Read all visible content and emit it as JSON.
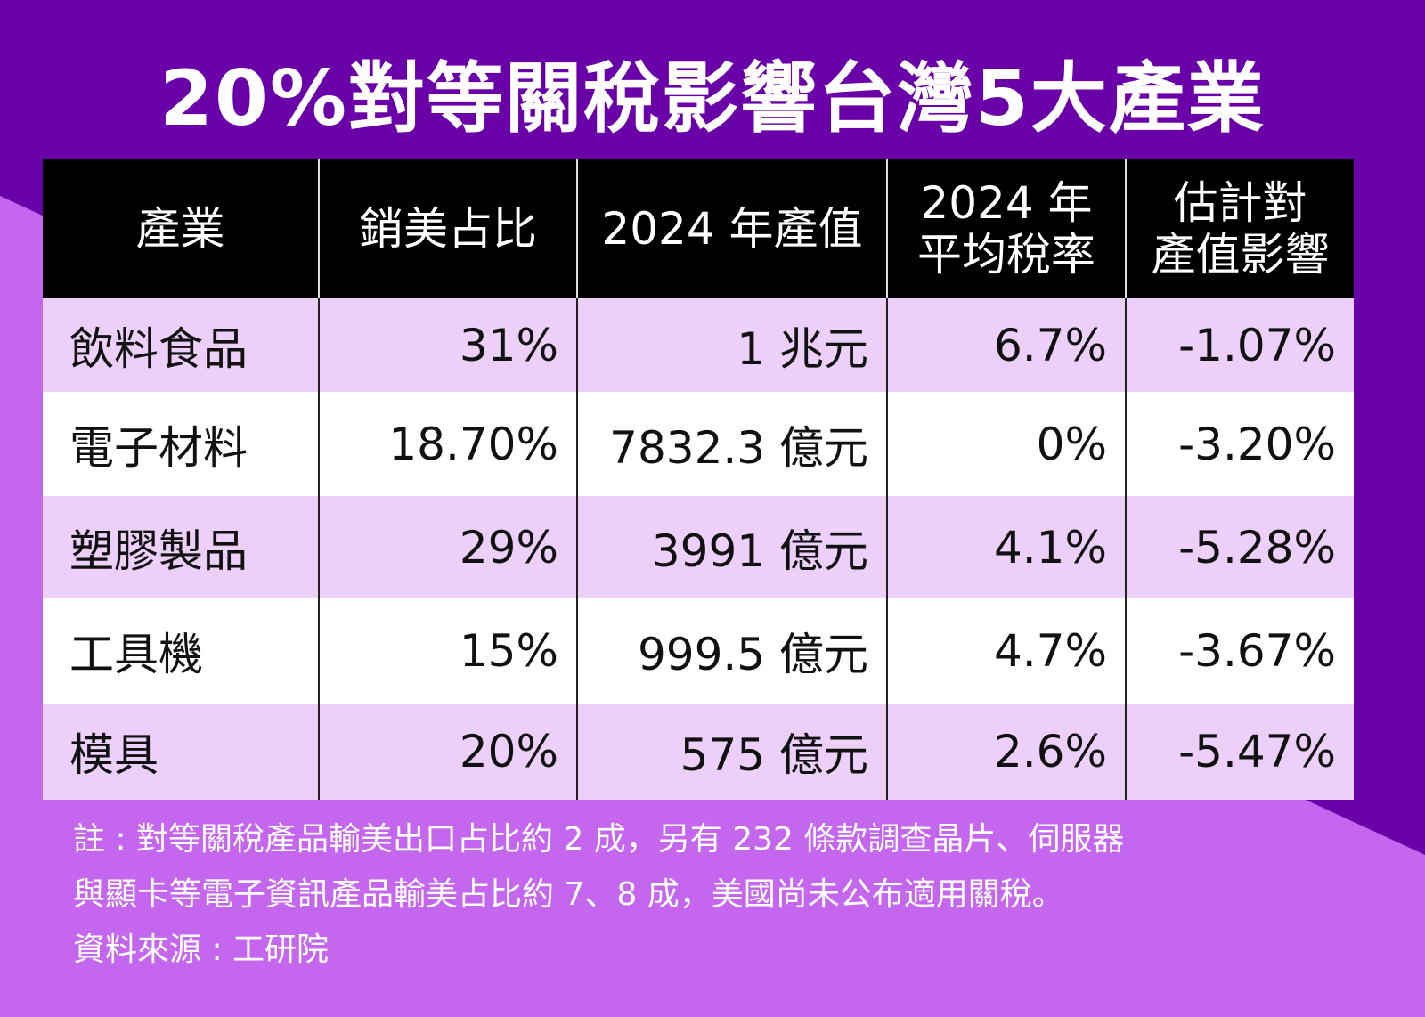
{
  "title": "20%對等關稅影響台灣5大產業",
  "colors": {
    "background_dark": "#6a00a8",
    "background_light": "#c466ee",
    "header_bg": "#000000",
    "row_tint": "#ecd0fa"
  },
  "chart_data": {
    "type": "table",
    "columns": [
      "產業",
      "銷美占比",
      "2024 年產值",
      "2024 年\n平均稅率",
      "估計對\n產值影響"
    ],
    "rows": [
      [
        "飲料食品",
        "31%",
        "1 兆元",
        "6.7%",
        "-1.07%"
      ],
      [
        "電子材料",
        "18.70%",
        "7832.3 億元",
        "0%",
        "-3.20%"
      ],
      [
        "塑膠製品",
        "29%",
        "3991 億元",
        "4.1%",
        "-5.28%"
      ],
      [
        "工具機",
        "15%",
        "999.5 億元",
        "4.7%",
        "-3.67%"
      ],
      [
        "模具",
        "20%",
        "575 億元",
        "2.6%",
        "-5.47%"
      ]
    ]
  },
  "notes": [
    "註 : 對等關稅產品輸美出口占比約 2 成，另有 232 條款調查晶片、伺服器",
    "與顯卡等電子資訊產品輸美占比約 7、8 成，美國尚未公布適用關稅。",
    "資料來源 : 工研院"
  ]
}
